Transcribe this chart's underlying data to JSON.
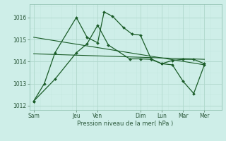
{
  "background_color": "#ceeee8",
  "grid_color_major": "#b0d8cc",
  "grid_color_minor": "#c4e8e0",
  "line_color": "#1a5c28",
  "xtick_labels": [
    "Sam",
    "Jeu",
    "Ven",
    "Dim",
    "Lun",
    "Mar",
    "Mer"
  ],
  "xtick_positions": [
    0,
    2,
    3,
    5,
    6,
    7,
    8
  ],
  "xlabel_text": "Pression niveau de la mer( hPa )",
  "ylim": [
    1011.8,
    1016.6
  ],
  "yticks": [
    1012,
    1013,
    1014,
    1015,
    1016
  ],
  "xlim": [
    -0.2,
    8.8
  ],
  "line1_x": [
    0,
    0.5,
    1.0,
    2.0,
    2.5,
    3.0,
    3.3,
    3.7,
    4.2,
    4.6,
    5.0,
    5.5,
    6.0,
    6.5,
    7.0,
    7.5,
    8.0
  ],
  "line1_y": [
    1012.2,
    1013.0,
    1014.4,
    1016.0,
    1015.1,
    1014.85,
    1016.25,
    1016.05,
    1015.55,
    1015.25,
    1015.2,
    1014.12,
    1013.9,
    1014.05,
    1014.1,
    1014.1,
    1013.9
  ],
  "line2_x": [
    0,
    1.0,
    2.0,
    2.5,
    3.0,
    3.5,
    4.5,
    5.0,
    5.5,
    6.0,
    6.5,
    7.0,
    7.5,
    8.0
  ],
  "line2_y": [
    1012.2,
    1013.2,
    1014.4,
    1014.8,
    1015.65,
    1014.75,
    1014.12,
    1014.12,
    1014.1,
    1013.9,
    1013.85,
    1013.1,
    1012.55,
    1013.85
  ],
  "trend1_x": [
    0,
    8.0
  ],
  "trend1_y": [
    1015.1,
    1013.85
  ],
  "trend2_x": [
    0,
    8.0
  ],
  "trend2_y": [
    1014.35,
    1014.1
  ],
  "figsize": [
    3.2,
    2.0
  ],
  "dpi": 100
}
